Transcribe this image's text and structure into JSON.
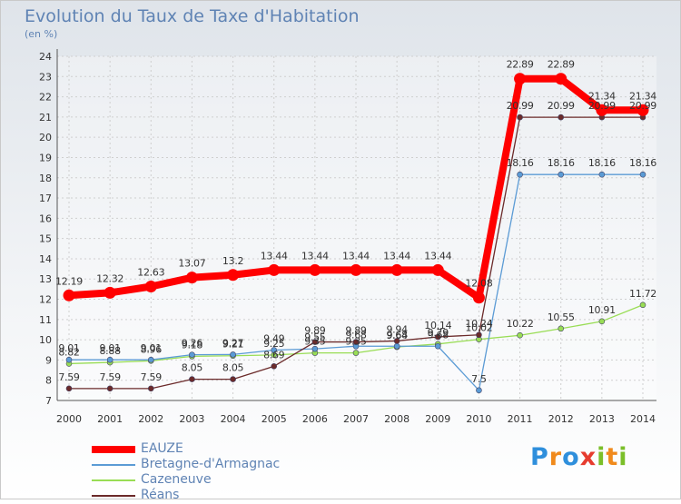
{
  "chart_data": {
    "type": "line",
    "title": "Evolution du Taux de Taxe d'Habitation",
    "subtitle": "(en %)",
    "categories": [
      "2000",
      "2001",
      "2002",
      "2003",
      "2004",
      "2005",
      "2006",
      "2007",
      "2008",
      "2009",
      "2010",
      "2011",
      "2012",
      "2013",
      "2014"
    ],
    "ylim": [
      7,
      24
    ],
    "yticks": [
      "7",
      "8",
      "9",
      "10",
      "11",
      "12",
      "13",
      "14",
      "15",
      "16",
      "17",
      "18",
      "19",
      "20",
      "21",
      "22",
      "23",
      "24"
    ],
    "grid": true,
    "legend_position": "bottom-left",
    "series": [
      {
        "name": "EAUZE",
        "color": "#ff0000",
        "values": [
          12.19,
          12.32,
          12.63,
          13.07,
          13.2,
          13.44,
          13.44,
          13.44,
          13.44,
          13.44,
          12.08,
          22.89,
          22.89,
          21.34,
          21.34
        ],
        "labels": [
          "12.19",
          "12.32",
          "12.63",
          "13.07",
          "13.2",
          "13.44",
          "13.44",
          "13.44",
          "13.44",
          "13.44",
          "12.08",
          "22.89",
          "22.89",
          "21.34",
          "21.34"
        ]
      },
      {
        "name": "Bretagne-d'Armagnac",
        "color": "#5b9bd5",
        "values": [
          9.01,
          9.01,
          9.01,
          9.26,
          9.27,
          9.49,
          9.55,
          9.68,
          9.68,
          9.68,
          7.5,
          18.16,
          18.16,
          18.16,
          18.16
        ],
        "labels": [
          "9.01",
          "9.01",
          "9.01",
          "9.26",
          "9.27",
          "9.49",
          "9.55",
          "9.68",
          "9.68",
          "9.68",
          "7.5",
          "18.16",
          "18.16",
          "18.16",
          "18.16"
        ]
      },
      {
        "name": "Cazeneuve",
        "color": "#99dd55",
        "values": [
          8.82,
          8.88,
          8.96,
          9.18,
          9.21,
          9.25,
          9.35,
          9.35,
          9.64,
          9.79,
          10.02,
          10.22,
          10.55,
          10.91,
          11.72
        ],
        "labels": [
          "8.82",
          "8.88",
          "8.96",
          "9.18",
          "9.21",
          "9.25",
          "9.35",
          "9.35",
          "9.64",
          "9.79",
          "10.02",
          "10.22",
          "10.55",
          "10.91",
          "11.72"
        ]
      },
      {
        "name": "Réans",
        "color": "#6b2a2a",
        "values": [
          7.59,
          7.59,
          7.59,
          8.05,
          8.05,
          8.69,
          9.89,
          9.89,
          9.94,
          10.14,
          10.24,
          20.99,
          20.99,
          20.99,
          20.99
        ],
        "labels": [
          "7.59",
          "7.59",
          "7.59",
          "8.05",
          "8.05",
          "8.69",
          "9.89",
          "9.89",
          "9.94",
          "10.14",
          "10.24",
          "20.99",
          "20.99",
          "20.99",
          "20.99"
        ]
      }
    ]
  },
  "logo": {
    "letters": [
      "P",
      "r",
      "o",
      "x",
      "i",
      "t",
      "i"
    ],
    "colors": [
      "#2f8fdc",
      "#f08a1c",
      "#2f8fdc",
      "#e63c2f",
      "#7bbf2a",
      "#f08a1c",
      "#7bbf2a"
    ]
  }
}
